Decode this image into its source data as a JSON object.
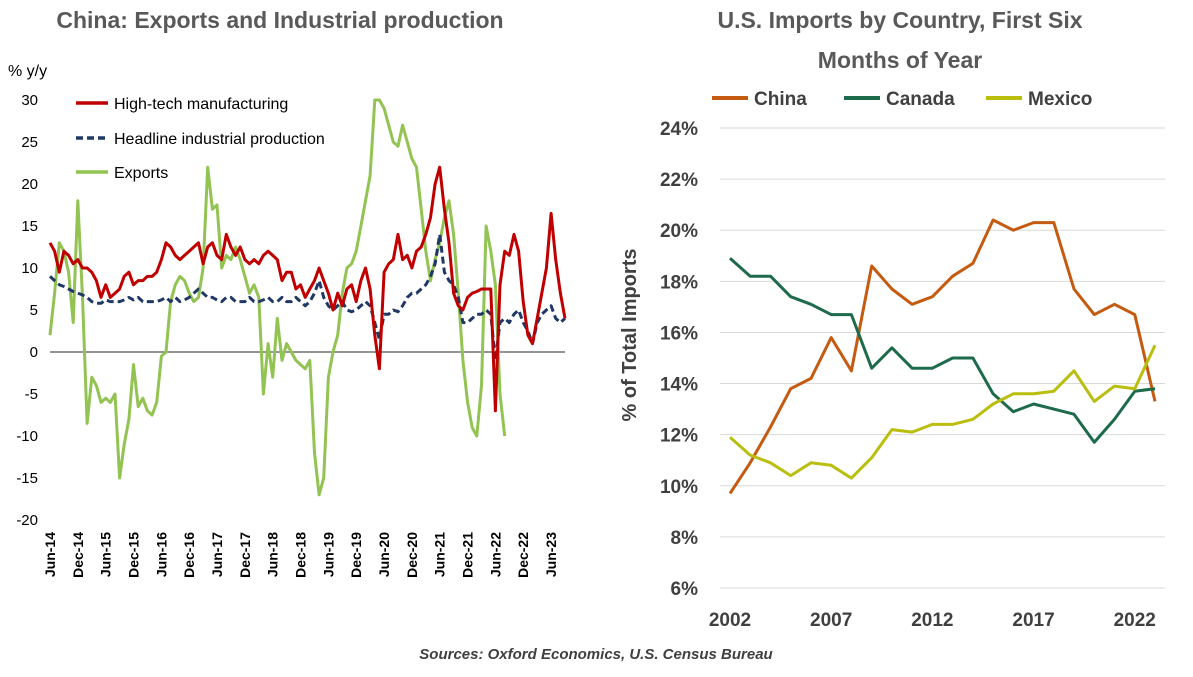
{
  "chart_data": [
    {
      "type": "line",
      "title": "China: Exports and Industrial production",
      "ylabel": "% y/y",
      "ylim": [
        -20,
        30
      ],
      "yticks": [
        30,
        25,
        20,
        15,
        10,
        5,
        0,
        -5,
        -10,
        -15,
        -20
      ],
      "xticks": [
        "Jun-14",
        "Dec-14",
        "Jun-15",
        "Dec-15",
        "Jun-16",
        "Dec-16",
        "Jun-17",
        "Dec-17",
        "Jun-18",
        "Dec-18",
        "Jun-19",
        "Dec-19",
        "Jun-20",
        "Dec-20",
        "Jun-21",
        "Dec-21",
        "Jun-22",
        "Dec-22",
        "Jun-23"
      ],
      "x_start": "Jun-14",
      "legend_position": "top-left",
      "series": [
        {
          "name": "High-tech manufacturing",
          "color": "#C00000",
          "style": "solid",
          "values": [
            13.0,
            12.0,
            9.5,
            12.0,
            11.5,
            10.5,
            11.0,
            10.0,
            10.0,
            9.5,
            8.5,
            6.5,
            8.0,
            6.5,
            7.0,
            7.5,
            9.0,
            9.5,
            8.0,
            8.5,
            8.5,
            9.0,
            9.0,
            9.5,
            11.0,
            13.0,
            12.5,
            11.5,
            11.0,
            11.5,
            12.0,
            12.5,
            13.0,
            10.5,
            12.5,
            13.0,
            11.5,
            11.0,
            14.0,
            12.5,
            11.5,
            12.5,
            11.0,
            10.5,
            11.0,
            10.5,
            11.5,
            12.0,
            11.5,
            11.0,
            8.5,
            9.5,
            9.5,
            7.5,
            8.0,
            6.5,
            7.5,
            8.5,
            10.0,
            8.5,
            7.0,
            5.0,
            7.0,
            5.5,
            7.5,
            8.0,
            6.0,
            8.5,
            10.0,
            7.5,
            2.0,
            -2.0,
            9.5,
            10.5,
            11.0,
            14.0,
            11.0,
            11.5,
            10.0,
            12.0,
            12.5,
            14.0,
            16.0,
            20.0,
            22.0,
            17.0,
            13.0,
            7.0,
            5.5,
            5.0,
            6.5,
            7.0,
            7.2,
            7.5,
            7.5,
            7.5,
            -7.0,
            8.0,
            12.0,
            11.5,
            14.0,
            12.0,
            6.0,
            2.0,
            1.0,
            4.0,
            7.0,
            10.0,
            16.5,
            11.0,
            7.0,
            4.0
          ]
        },
        {
          "name": "Headline industrial production",
          "color": "#1F3864",
          "style": "dashed",
          "values": [
            9.0,
            8.5,
            8.0,
            7.8,
            7.5,
            7.2,
            7.0,
            6.8,
            6.5,
            6.0,
            5.8,
            5.8,
            6.2,
            6.0,
            6.0,
            6.0,
            6.2,
            6.5,
            6.2,
            6.5,
            6.0,
            6.0,
            6.0,
            6.0,
            6.2,
            6.5,
            6.0,
            6.5,
            6.0,
            6.2,
            6.5,
            7.0,
            7.5,
            7.0,
            6.5,
            6.5,
            6.2,
            6.0,
            6.5,
            6.5,
            6.0,
            6.0,
            6.0,
            6.5,
            6.0,
            6.0,
            6.2,
            6.5,
            6.0,
            6.0,
            6.5,
            6.0,
            6.0,
            6.5,
            6.0,
            5.5,
            6.0,
            7.0,
            8.5,
            6.5,
            5.5,
            5.0,
            5.5,
            6.0,
            5.0,
            4.8,
            5.0,
            5.5,
            6.0,
            5.5,
            3.5,
            1.5,
            4.5,
            4.5,
            5.0,
            4.8,
            5.5,
            6.5,
            7.0,
            7.0,
            7.5,
            8.0,
            9.0,
            10.5,
            14.0,
            9.5,
            8.5,
            8.0,
            6.5,
            3.5,
            3.5,
            4.0,
            4.5,
            4.5,
            5.0,
            4.5,
            -1.0,
            3.5,
            4.0,
            3.5,
            4.5,
            5.0,
            3.5,
            2.5,
            1.0,
            3.5,
            4.5,
            5.0,
            5.5,
            4.0,
            3.5,
            4.0
          ]
        },
        {
          "name": "Exports",
          "color": "#92C353",
          "style": "solid",
          "values": [
            2.0,
            7.0,
            13.0,
            12.0,
            9.5,
            3.5,
            18.0,
            6.5,
            -8.5,
            -3.0,
            -4.0,
            -6.0,
            -5.5,
            -6.0,
            -5.0,
            -15.0,
            -11.0,
            -8.0,
            -1.5,
            -6.5,
            -5.5,
            -7.0,
            -7.5,
            -6.0,
            -0.5,
            0.0,
            6.0,
            8.0,
            9.0,
            8.5,
            7.0,
            6.0,
            6.5,
            10.0,
            22.0,
            17.0,
            17.5,
            10.0,
            11.5,
            11.0,
            12.5,
            11.0,
            9.0,
            7.0,
            8.0,
            6.5,
            -5.0,
            1.0,
            -3.0,
            4.0,
            -1.0,
            1.0,
            0.0,
            -1.0,
            -1.5,
            -2.0,
            -1.0,
            -12.0,
            -17.0,
            -15.0,
            -3.0,
            0.0,
            2.0,
            7.0,
            10.0,
            10.5,
            12.0,
            15.0,
            18.0,
            21.0,
            30.0,
            31.0,
            29.0,
            27.0,
            25.0,
            24.5,
            27.0,
            25.0,
            23.0,
            22.0,
            17.0,
            12.0,
            8.5,
            11.0,
            13.0,
            16.0,
            18.0,
            14.0,
            7.0,
            -1.0,
            -6.0,
            -9.0,
            -10.0,
            -4.0,
            15.0,
            12.0,
            8.0,
            -5.0,
            -10.0
          ]
        }
      ]
    },
    {
      "type": "line",
      "title_line1": "U.S. Imports by Country, First Six",
      "title_line2": "Months of Year",
      "ylabel": "% of Total Imports",
      "ylim": [
        6,
        24
      ],
      "yticks": [
        "24%",
        "22%",
        "20%",
        "18%",
        "16%",
        "14%",
        "12%",
        "10%",
        "8%",
        "6%"
      ],
      "xticks": [
        "2002",
        "2007",
        "2012",
        "2017",
        "2022"
      ],
      "x": [
        2002,
        2003,
        2004,
        2005,
        2006,
        2007,
        2008,
        2009,
        2010,
        2011,
        2012,
        2013,
        2014,
        2015,
        2016,
        2017,
        2018,
        2019,
        2020,
        2021,
        2022,
        2023
      ],
      "legend_position": "top",
      "gridlines": true,
      "series": [
        {
          "name": "China",
          "color": "#C55A11",
          "values": [
            9.7,
            10.9,
            12.3,
            13.8,
            14.2,
            15.8,
            14.5,
            18.6,
            17.7,
            17.1,
            17.4,
            18.2,
            18.7,
            20.4,
            20.0,
            20.3,
            20.3,
            17.7,
            16.7,
            17.1,
            16.7,
            13.3
          ]
        },
        {
          "name": "Canada",
          "color": "#1D6B4B",
          "values": [
            18.9,
            18.2,
            18.2,
            17.4,
            17.1,
            16.7,
            16.7,
            14.6,
            15.4,
            14.6,
            14.6,
            15.0,
            15.0,
            13.6,
            12.9,
            13.2,
            13.0,
            12.8,
            11.7,
            12.6,
            13.7,
            13.8
          ]
        },
        {
          "name": "Mexico",
          "color": "#B9BE0F",
          "values": [
            11.9,
            11.2,
            10.9,
            10.4,
            10.9,
            10.8,
            10.3,
            11.1,
            12.2,
            12.1,
            12.4,
            12.4,
            12.6,
            13.2,
            13.6,
            13.6,
            13.7,
            14.5,
            13.3,
            13.9,
            13.8,
            15.5
          ]
        }
      ]
    }
  ],
  "footer": {
    "sources": "Sources: Oxford Economics, U.S. Census Bureau"
  }
}
